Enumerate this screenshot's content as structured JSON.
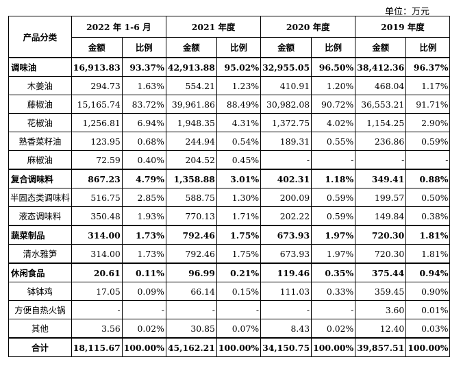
{
  "unit": "单位：万元",
  "header": {
    "product_category": "产品分类",
    "periods": [
      "2022 年 1-6 月",
      "2021 年度",
      "2020 年度",
      "2019 年度"
    ],
    "amount": "金额",
    "ratio": "比例"
  },
  "rows": [
    {
      "name": "调味油",
      "v": [
        "16,913.83",
        "93.37%",
        "42,913.88",
        "95.02%",
        "32,955.05",
        "96.50%",
        "38,412.36",
        "96.37%"
      ]
    },
    {
      "name": "木姜油",
      "v": [
        "294.73",
        "1.63%",
        "554.21",
        "1.23%",
        "410.91",
        "1.20%",
        "468.04",
        "1.17%"
      ]
    },
    {
      "name": "藤椒油",
      "v": [
        "15,165.74",
        "83.72%",
        "39,961.86",
        "88.49%",
        "30,982.08",
        "90.72%",
        "36,553.21",
        "91.71%"
      ]
    },
    {
      "name": "花椒油",
      "v": [
        "1,256.81",
        "6.94%",
        "1,948.35",
        "4.31%",
        "1,372.75",
        "4.02%",
        "1,154.25",
        "2.90%"
      ]
    },
    {
      "name": "熟香菜籽油",
      "v": [
        "123.95",
        "0.68%",
        "244.94",
        "0.54%",
        "189.31",
        "0.55%",
        "236.86",
        "0.59%"
      ]
    },
    {
      "name": "麻椒油",
      "v": [
        "72.59",
        "0.40%",
        "204.52",
        "0.45%",
        "-",
        "-",
        "-",
        "-"
      ]
    },
    {
      "name": "复合调味料",
      "v": [
        "867.23",
        "4.79%",
        "1,358.88",
        "3.01%",
        "402.31",
        "1.18%",
        "349.41",
        "0.88%"
      ]
    },
    {
      "name": "半固态类调味料",
      "v": [
        "516.75",
        "2.85%",
        "588.75",
        "1.30%",
        "200.09",
        "0.59%",
        "199.57",
        "0.50%"
      ]
    },
    {
      "name": "液态调味料",
      "v": [
        "350.48",
        "1.93%",
        "770.13",
        "1.71%",
        "202.22",
        "0.59%",
        "149.84",
        "0.38%"
      ]
    },
    {
      "name": "蔬菜制品",
      "v": [
        "314.00",
        "1.73%",
        "792.46",
        "1.75%",
        "673.93",
        "1.97%",
        "720.30",
        "1.81%"
      ]
    },
    {
      "name": "清水雅笋",
      "v": [
        "314.00",
        "1.73%",
        "792.46",
        "1.75%",
        "673.93",
        "1.97%",
        "720.30",
        "1.81%"
      ]
    },
    {
      "name": "休闲食品",
      "v": [
        "20.61",
        "0.11%",
        "96.99",
        "0.21%",
        "119.46",
        "0.35%",
        "375.44",
        "0.94%"
      ]
    },
    {
      "name": "钵钵鸡",
      "v": [
        "17.05",
        "0.09%",
        "66.14",
        "0.15%",
        "111.03",
        "0.33%",
        "359.45",
        "0.90%"
      ]
    },
    {
      "name": "方便自热火锅",
      "v": [
        "-",
        "-",
        "-",
        "-",
        "-",
        "-",
        "3.60",
        "0.01%"
      ]
    },
    {
      "name": "其他",
      "v": [
        "3.56",
        "0.02%",
        "30.85",
        "0.07%",
        "8.43",
        "0.02%",
        "12.40",
        "0.03%"
      ]
    },
    {
      "name": "合计",
      "v": [
        "18,115.67",
        "100.00%",
        "45,162.21",
        "100.00%",
        "34,150.75",
        "100.00%",
        "39,857.51",
        "100.00%"
      ]
    }
  ]
}
